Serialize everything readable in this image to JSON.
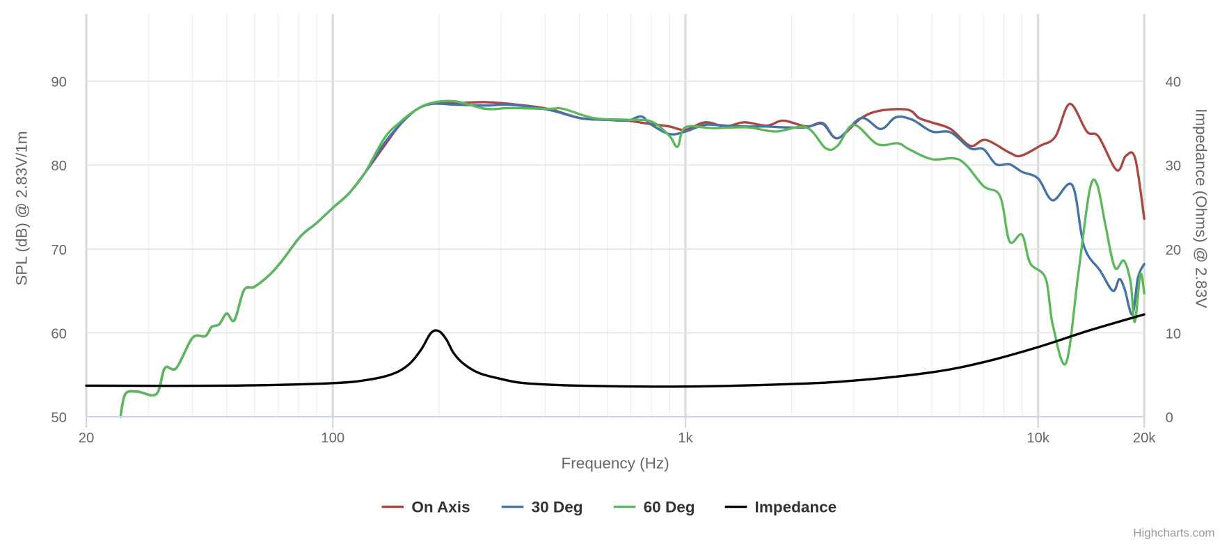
{
  "chart_data": {
    "type": "line",
    "xlabel": "Frequency (Hz)",
    "ylabel": "SPL (dB) @ 2.83V/1m",
    "y2label": "Impedance (Ohms) @ 2.83V",
    "xscale": "log",
    "xlim": [
      20,
      20000
    ],
    "ylim": [
      50,
      98
    ],
    "y2lim": [
      0,
      48
    ],
    "xticks": [
      {
        "v": 20,
        "label": "20"
      },
      {
        "v": 100,
        "label": "100"
      },
      {
        "v": 1000,
        "label": "1k"
      },
      {
        "v": 10000,
        "label": "10k"
      },
      {
        "v": 20000,
        "label": "20k"
      }
    ],
    "yticks": [
      {
        "v": 50,
        "label": "50"
      },
      {
        "v": 60,
        "label": "60"
      },
      {
        "v": 70,
        "label": "70"
      },
      {
        "v": 80,
        "label": "80"
      },
      {
        "v": 90,
        "label": "90"
      }
    ],
    "y2ticks": [
      {
        "v": 0,
        "label": "0"
      },
      {
        "v": 10,
        "label": "10"
      },
      {
        "v": 20,
        "label": "20"
      },
      {
        "v": 30,
        "label": "30"
      },
      {
        "v": 40,
        "label": "40"
      }
    ],
    "grid": true,
    "legend_position": "bottom-center",
    "credit": "Highcharts.com",
    "series": [
      {
        "name": "On Axis",
        "color": "#aa4643",
        "axis": "left",
        "points": [
          [
            25,
            50
          ],
          [
            25.8,
            52.7
          ],
          [
            27.9,
            53
          ],
          [
            31.6,
            52.7
          ],
          [
            33.4,
            55.8
          ],
          [
            36,
            55.8
          ],
          [
            40,
            59.4
          ],
          [
            43.5,
            59.6
          ],
          [
            45.3,
            60.7
          ],
          [
            47.6,
            61
          ],
          [
            50,
            62.3
          ],
          [
            52.6,
            61.5
          ],
          [
            56,
            65.1
          ],
          [
            60,
            65.5
          ],
          [
            66.5,
            67
          ],
          [
            71.8,
            68.6
          ],
          [
            81,
            71.5
          ],
          [
            90,
            73.1
          ],
          [
            100,
            74.9
          ],
          [
            111,
            76.6
          ],
          [
            123,
            79
          ],
          [
            140,
            82.3
          ],
          [
            155,
            84.8
          ],
          [
            171,
            86.5
          ],
          [
            190,
            87.3
          ],
          [
            222,
            87.4
          ],
          [
            272,
            87.5
          ],
          [
            317,
            87.3
          ],
          [
            408,
            86.7
          ],
          [
            503,
            85.6
          ],
          [
            600,
            85.4
          ],
          [
            684,
            85.3
          ],
          [
            795,
            84.9
          ],
          [
            900,
            84.6
          ],
          [
            1000,
            84.2
          ],
          [
            1137,
            85.1
          ],
          [
            1300,
            84.6
          ],
          [
            1468,
            85.1
          ],
          [
            1700,
            84.7
          ],
          [
            1895,
            85.3
          ],
          [
            2200,
            84.6
          ],
          [
            2450,
            84.9
          ],
          [
            2700,
            83.2
          ],
          [
            3150,
            85.6
          ],
          [
            3580,
            86.5
          ],
          [
            4270,
            86.6
          ],
          [
            4600,
            85.6
          ],
          [
            4980,
            85.1
          ],
          [
            5650,
            84.3
          ],
          [
            6420,
            82.3
          ],
          [
            7100,
            83
          ],
          [
            8280,
            81.5
          ],
          [
            8930,
            81.1
          ],
          [
            10140,
            82.3
          ],
          [
            11200,
            83.4
          ],
          [
            12300,
            87.3
          ],
          [
            13750,
            84
          ],
          [
            14840,
            83.4
          ],
          [
            16700,
            79.4
          ],
          [
            17740,
            81.1
          ],
          [
            18850,
            80.8
          ],
          [
            20000,
            73.6
          ]
        ]
      },
      {
        "name": "30 Deg",
        "color": "#4572a7",
        "axis": "left",
        "points": [
          [
            25,
            50
          ],
          [
            25.8,
            52.7
          ],
          [
            27.9,
            53
          ],
          [
            31.6,
            52.7
          ],
          [
            33.4,
            55.8
          ],
          [
            36,
            55.8
          ],
          [
            40,
            59.4
          ],
          [
            43.5,
            59.6
          ],
          [
            45.3,
            60.7
          ],
          [
            47.6,
            61
          ],
          [
            50,
            62.3
          ],
          [
            52.6,
            61.5
          ],
          [
            56,
            65.1
          ],
          [
            60,
            65.5
          ],
          [
            66.5,
            67
          ],
          [
            71.8,
            68.6
          ],
          [
            81,
            71.5
          ],
          [
            90,
            73.1
          ],
          [
            100,
            74.9
          ],
          [
            111,
            76.6
          ],
          [
            123,
            79
          ],
          [
            140,
            82.6
          ],
          [
            155,
            84.8
          ],
          [
            171,
            86.5
          ],
          [
            190,
            87.3
          ],
          [
            222,
            87.2
          ],
          [
            272,
            87.1
          ],
          [
            317,
            87.2
          ],
          [
            408,
            86.6
          ],
          [
            503,
            85.6
          ],
          [
            600,
            85.4
          ],
          [
            684,
            85.3
          ],
          [
            750,
            85.8
          ],
          [
            795,
            84.9
          ],
          [
            900,
            83.7
          ],
          [
            1000,
            84.0
          ],
          [
            1137,
            84.8
          ],
          [
            1300,
            84.7
          ],
          [
            1468,
            84.6
          ],
          [
            1700,
            84.6
          ],
          [
            1895,
            84.5
          ],
          [
            2200,
            84.5
          ],
          [
            2450,
            85
          ],
          [
            2700,
            83.2
          ],
          [
            3150,
            85.6
          ],
          [
            3580,
            84.3
          ],
          [
            3950,
            85.7
          ],
          [
            4400,
            85.4
          ],
          [
            5000,
            84
          ],
          [
            5650,
            83.9
          ],
          [
            6420,
            82
          ],
          [
            7000,
            81.9
          ],
          [
            7600,
            80.1
          ],
          [
            8300,
            80.1
          ],
          [
            9000,
            79.2
          ],
          [
            10000,
            78.4
          ],
          [
            11000,
            75.8
          ],
          [
            12500,
            77.6
          ],
          [
            13500,
            70.3
          ],
          [
            15000,
            67.4
          ],
          [
            16300,
            65
          ],
          [
            17000,
            66.4
          ],
          [
            17600,
            65.2
          ],
          [
            18500,
            62.2
          ],
          [
            19200,
            66.6
          ],
          [
            20000,
            68.2
          ]
        ]
      },
      {
        "name": "60 Deg",
        "color": "#5cb85c",
        "axis": "left",
        "points": [
          [
            25,
            50
          ],
          [
            25.8,
            52.7
          ],
          [
            27.9,
            53
          ],
          [
            31.6,
            52.7
          ],
          [
            33.4,
            55.8
          ],
          [
            36,
            55.8
          ],
          [
            40,
            59.4
          ],
          [
            43.5,
            59.6
          ],
          [
            45.3,
            60.7
          ],
          [
            47.6,
            61
          ],
          [
            50,
            62.3
          ],
          [
            52.6,
            61.5
          ],
          [
            56,
            65.1
          ],
          [
            60,
            65.5
          ],
          [
            66.5,
            67
          ],
          [
            71.8,
            68.6
          ],
          [
            81,
            71.5
          ],
          [
            90,
            73.1
          ],
          [
            100,
            74.9
          ],
          [
            111,
            76.6
          ],
          [
            123,
            79
          ],
          [
            140,
            83.2
          ],
          [
            155,
            85.1
          ],
          [
            171,
            86.5
          ],
          [
            190,
            87.4
          ],
          [
            222,
            87.6
          ],
          [
            272,
            86.7
          ],
          [
            317,
            86.8
          ],
          [
            408,
            86.7
          ],
          [
            450,
            86.7
          ],
          [
            550,
            85.6
          ],
          [
            684,
            85.4
          ],
          [
            800,
            85.2
          ],
          [
            900,
            83.5
          ],
          [
            950,
            82.2
          ],
          [
            1000,
            84.5
          ],
          [
            1200,
            84.4
          ],
          [
            1500,
            84.5
          ],
          [
            1800,
            84
          ],
          [
            2200,
            84.5
          ],
          [
            2500,
            82.0
          ],
          [
            2700,
            82.3
          ],
          [
            3000,
            84.8
          ],
          [
            3500,
            82.5
          ],
          [
            4000,
            82.6
          ],
          [
            4300,
            81.9
          ],
          [
            5000,
            80.7
          ],
          [
            6000,
            80.6
          ],
          [
            7000,
            77.5
          ],
          [
            7800,
            76.3
          ],
          [
            8300,
            70.9
          ],
          [
            9000,
            71.7
          ],
          [
            9500,
            68.3
          ],
          [
            10500,
            66.5
          ],
          [
            11000,
            61
          ],
          [
            12000,
            56.4
          ],
          [
            13000,
            67
          ],
          [
            14000,
            77
          ],
          [
            14700,
            77.7
          ],
          [
            15500,
            73
          ],
          [
            16500,
            67.8
          ],
          [
            17500,
            68.6
          ],
          [
            18300,
            66
          ],
          [
            18800,
            61.3
          ],
          [
            19500,
            67
          ],
          [
            20000,
            64.7
          ]
        ]
      },
      {
        "name": "Impedance",
        "color": "#000000",
        "axis": "right",
        "points": [
          [
            20,
            3.7
          ],
          [
            50,
            3.7
          ],
          [
            100,
            4.0
          ],
          [
            130,
            4.5
          ],
          [
            150,
            5.2
          ],
          [
            165,
            6.3
          ],
          [
            178,
            8
          ],
          [
            190,
            10
          ],
          [
            200,
            10.2
          ],
          [
            210,
            9.2
          ],
          [
            220,
            7.6
          ],
          [
            235,
            6.3
          ],
          [
            260,
            5.2
          ],
          [
            300,
            4.5
          ],
          [
            350,
            4.0
          ],
          [
            500,
            3.7
          ],
          [
            1000,
            3.6
          ],
          [
            2000,
            3.9
          ],
          [
            3000,
            4.3
          ],
          [
            5000,
            5.3
          ],
          [
            7000,
            6.5
          ],
          [
            10000,
            8.3
          ],
          [
            14000,
            10.3
          ],
          [
            20000,
            12.2
          ]
        ]
      }
    ]
  }
}
